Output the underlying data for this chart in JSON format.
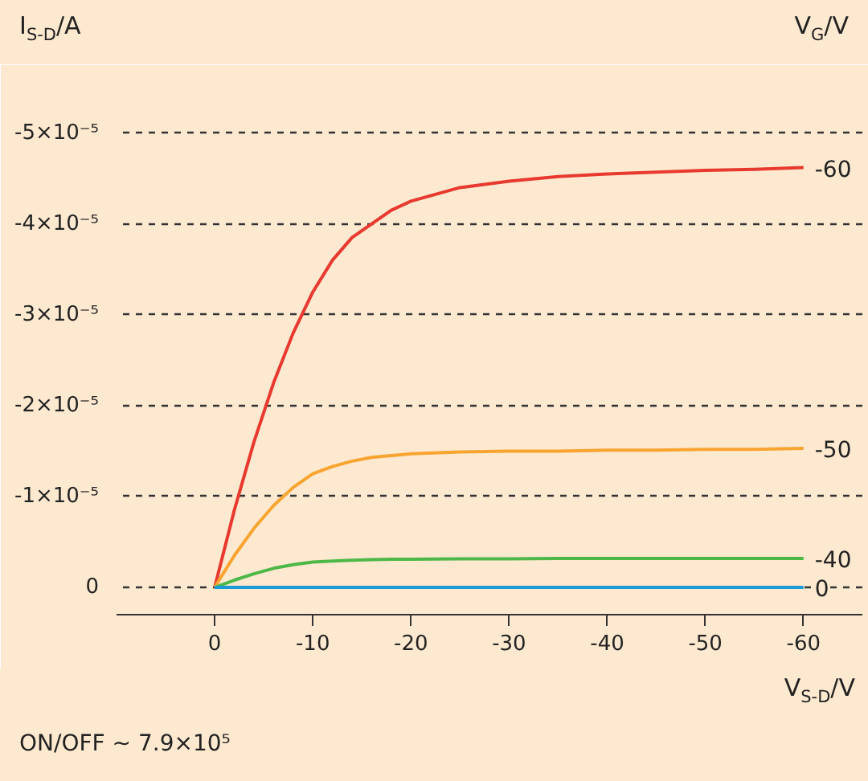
{
  "chart_data": {
    "type": "line",
    "ylabel": "I$_{S-D}$/A",
    "xlabel": "V$_{S-D}$/V",
    "legend_title": "V$_{G}$/V",
    "annotations": [
      "ON/OFF ~ 7.9×10⁵"
    ],
    "x": [
      0,
      -2,
      -4,
      -6,
      -8,
      -10,
      -12,
      -14,
      -16,
      -18,
      -20,
      -25,
      -30,
      -35,
      -40,
      -45,
      -50,
      -55,
      -60
    ],
    "series": [
      {
        "name": "-60",
        "color": "#e8392f",
        "values": [
          0,
          -8.5e-06,
          -1.6e-05,
          -2.25e-05,
          -2.8e-05,
          -3.25e-05,
          -3.6e-05,
          -3.85e-05,
          -4e-05,
          -4.15e-05,
          -4.25e-05,
          -4.4e-05,
          -4.47e-05,
          -4.52e-05,
          -4.55e-05,
          -4.57e-05,
          -4.59e-05,
          -4.6e-05,
          -4.62e-05
        ]
      },
      {
        "name": "-50",
        "color": "#f9a430",
        "values": [
          0,
          -3.5e-06,
          -6.5e-06,
          -9e-06,
          -1.1e-05,
          -1.25e-05,
          -1.33e-05,
          -1.39e-05,
          -1.43e-05,
          -1.45e-05,
          -1.47e-05,
          -1.49e-05,
          -1.5e-05,
          -1.5e-05,
          -1.51e-05,
          -1.51e-05,
          -1.52e-05,
          -1.52e-05,
          -1.53e-05
        ]
      },
      {
        "name": "-40",
        "color": "#4db848",
        "values": [
          0,
          -8e-07,
          -1.5e-06,
          -2.1e-06,
          -2.5e-06,
          -2.8e-06,
          -2.9e-06,
          -3e-06,
          -3.05e-06,
          -3.1e-06,
          -3.1e-06,
          -3.15e-06,
          -3.15e-06,
          -3.2e-06,
          -3.2e-06,
          -3.2e-06,
          -3.2e-06,
          -3.2e-06,
          -3.2e-06
        ]
      },
      {
        "name": "0",
        "color": "#1a9ad6",
        "values": [
          0,
          0,
          0,
          0,
          0,
          0,
          0,
          0,
          0,
          0,
          0,
          0,
          0,
          0,
          0,
          0,
          0,
          0,
          0
        ]
      }
    ],
    "xlim": [
      10,
      -66
    ],
    "ylim": [
      3e-06,
      -5.5e-05
    ],
    "xticks": [
      0,
      -10,
      -20,
      -30,
      -40,
      -50,
      -60
    ],
    "yticks": [
      0,
      {
        "value": -1e-05,
        "label": "-1×10⁻⁵"
      },
      {
        "value": -2e-05,
        "label": "-2×10⁻⁵"
      },
      {
        "value": -3e-05,
        "label": "-3×10⁻⁵"
      },
      {
        "value": -4e-05,
        "label": "-4×10⁻⁵"
      },
      {
        "value": -5e-05,
        "label": "-5×10⁻⁵"
      }
    ],
    "grid": "y"
  }
}
